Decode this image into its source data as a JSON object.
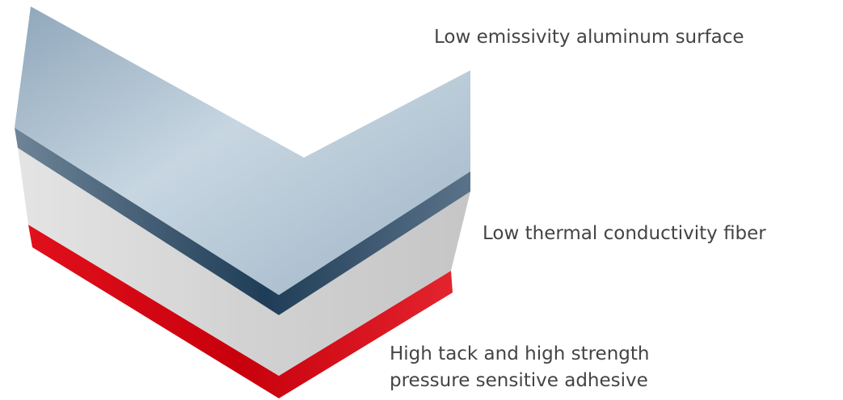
{
  "layers": [
    {
      "label": [
        "Low emissivity aluminum surface"
      ]
    },
    {
      "label": [
        "Low thermal conductivity fiber"
      ]
    },
    {
      "label": [
        "High tack and high strength",
        "pressure sensitive adhesive"
      ]
    }
  ]
}
